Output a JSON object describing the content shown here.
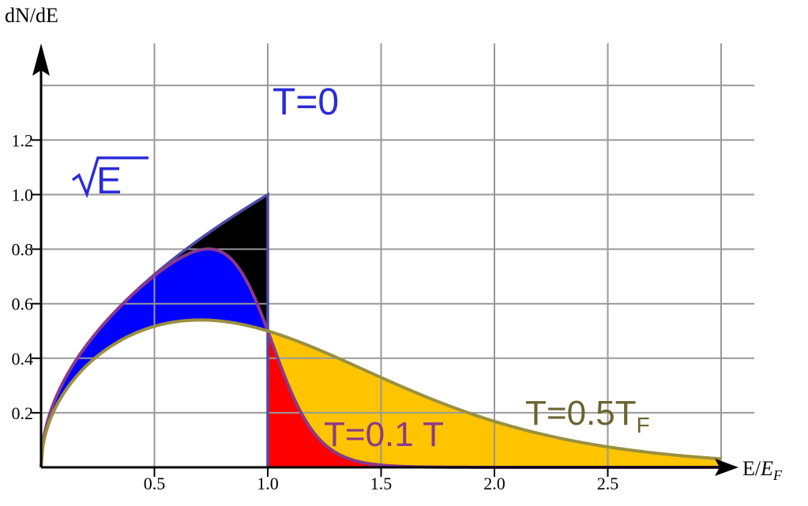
{
  "chart_data": {
    "type": "area",
    "ylabel": "dN/dE",
    "xlabel_main": "E/",
    "xlabel_sub": "E",
    "xlabel_subscript": "F",
    "xlim": [
      0,
      3
    ],
    "ylim": [
      0,
      1.5
    ],
    "grid": true,
    "x_ticks": [
      "0.5",
      "1.0",
      "1.5",
      "2.0",
      "2.5"
    ],
    "x_tick_values": [
      0.5,
      1.0,
      1.5,
      2.0,
      2.5
    ],
    "y_ticks": [
      "0.2",
      "0.4",
      "0.6",
      "0.8",
      "1.0",
      "1.2"
    ],
    "y_tick_values": [
      0.2,
      0.4,
      0.6,
      0.8,
      1.0,
      1.2
    ],
    "series": [
      {
        "name": "T=0",
        "formula": "sqrt(E) for E<=1",
        "color": "#4a4aa8",
        "fill": "#000000"
      },
      {
        "name": "T=0.1 T",
        "temperature": 0.1,
        "color": "#8a3a8a",
        "fill_below_1": "#0000ff",
        "fill_above_1": "#ff0000"
      },
      {
        "name": "T=0.5T",
        "name_subscript": "F",
        "temperature": 0.5,
        "color": "#9a9040",
        "fill_above_1": "#ffc400"
      }
    ],
    "annotations": {
      "t0": "T=0",
      "sqrt_label": "E",
      "t01": "T=0.1 T",
      "t05_main": "T=0.5T",
      "t05_sub": "F"
    }
  }
}
